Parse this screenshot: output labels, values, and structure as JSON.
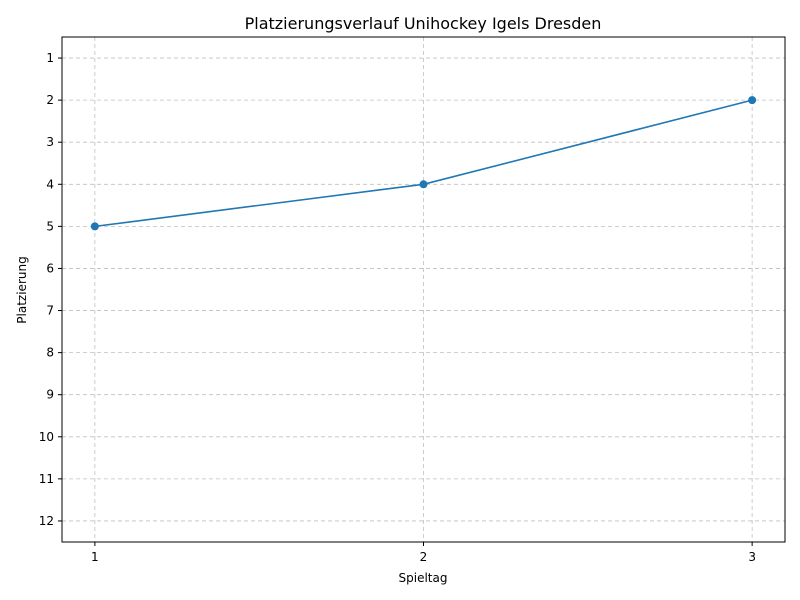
{
  "chart_data": {
    "type": "line",
    "title": "Platzierungsverlauf Unihockey Igels Dresden",
    "xlabel": "Spieltag",
    "ylabel": "Platzierung",
    "x": [
      1,
      2,
      3
    ],
    "series": [
      {
        "name": "Platzierung",
        "values": [
          5,
          4,
          2
        ],
        "color": "#1f77b4"
      }
    ],
    "xticks": [
      "1",
      "2",
      "3"
    ],
    "yticks": [
      "1",
      "2",
      "3",
      "4",
      "5",
      "6",
      "7",
      "8",
      "9",
      "10",
      "11",
      "12"
    ],
    "xlim": [
      0.9,
      3.1
    ],
    "ylim": [
      12.5,
      0.5
    ],
    "y_inverted": true,
    "grid": true
  }
}
